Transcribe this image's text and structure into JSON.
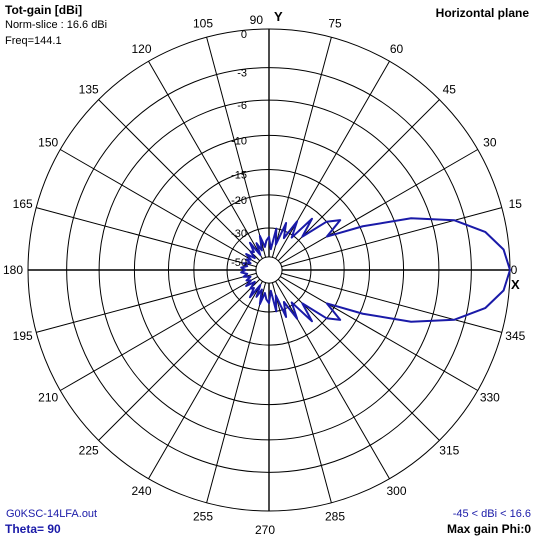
{
  "header": {
    "title": "Tot-gain [dBi]",
    "norm": "Norm-slice : 16.6 dBi",
    "freq": "Freq=144.1",
    "plane": "Horizontal plane"
  },
  "footer": {
    "file": "G0KSC-14LFA.out",
    "theta": "Theta= 90",
    "range": "-45 < dBi < 16.6",
    "max_gain": "Max gain Phi:0"
  },
  "axis_letters": {
    "y": "Y",
    "x": "X"
  },
  "colors": {
    "trace": "#1a1aa8",
    "grid": "#000000",
    "footer_text": "#1a1aa8"
  },
  "chart_data": {
    "type": "polar",
    "angle_ticks": [
      "0",
      "15",
      "30",
      "45",
      "60",
      "75",
      "90",
      "105",
      "120",
      "135",
      "150",
      "165",
      "180",
      "195",
      "210",
      "225",
      "240",
      "255",
      "270",
      "285",
      "300",
      "315",
      "330",
      "345"
    ],
    "ring_labels": [
      "0",
      "-3",
      "-6",
      "-10",
      "-15",
      "-20",
      "-30",
      "-50"
    ],
    "ring_values": [
      0,
      -3,
      -6,
      -10,
      -15,
      -20,
      -30,
      -50
    ],
    "series": [
      {
        "phi": [
          0,
          5,
          10,
          15,
          20,
          25,
          30,
          35,
          40,
          45,
          50,
          55,
          60,
          65,
          70,
          75,
          80,
          85,
          90,
          95,
          100,
          105,
          110,
          115,
          120,
          125,
          130,
          135,
          140,
          145,
          150,
          155,
          160,
          165,
          170,
          175,
          180,
          185,
          190,
          195,
          200,
          205,
          210,
          215,
          220,
          225,
          230,
          235,
          240,
          245,
          250,
          255,
          260,
          265,
          270,
          275,
          280,
          285,
          290,
          295,
          300,
          305,
          310,
          315,
          320,
          325,
          330,
          335,
          340,
          345,
          350,
          355
        ],
        "gain_db": [
          0,
          -0.4,
          -1.6,
          -3.9,
          -8.0,
          -14.5,
          -22,
          -17.5,
          -20,
          -28,
          -22,
          -31,
          -25,
          -33,
          -27,
          -38,
          -30,
          -42,
          -34,
          -36,
          -40,
          -33,
          -42,
          -36,
          -45,
          -34,
          -40,
          -38,
          -44,
          -37,
          -42,
          -39,
          -43,
          -38,
          -41,
          -37,
          -40,
          -37,
          -41,
          -38,
          -43,
          -39,
          -42,
          -37,
          -44,
          -38,
          -40,
          -34,
          -45,
          -36,
          -42,
          -33,
          -40,
          -36,
          -34,
          -42,
          -30,
          -38,
          -27,
          -33,
          -25,
          -31,
          -22,
          -28,
          -20,
          -17.5,
          -22,
          -14.5,
          -8.0,
          -3.9,
          -1.6,
          -0.4
        ]
      }
    ]
  }
}
